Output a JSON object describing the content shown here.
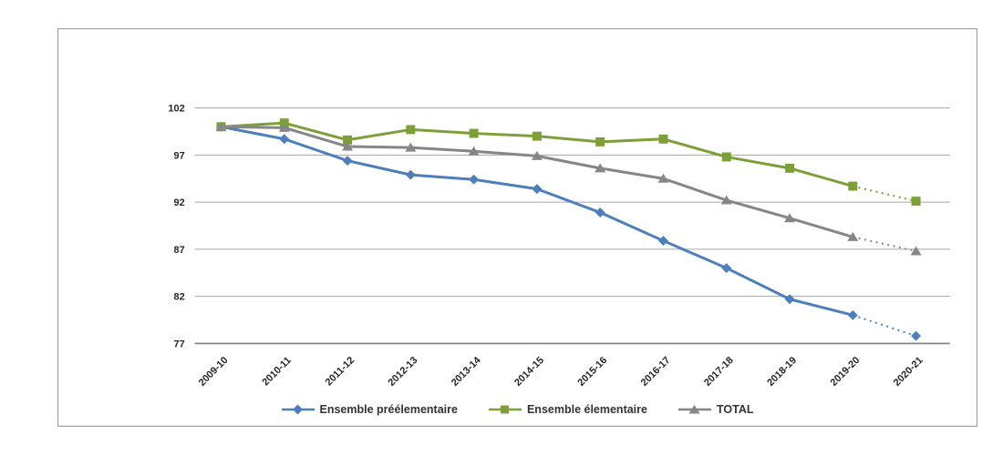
{
  "page": {
    "background": "#ffffff"
  },
  "chart_data": {
    "type": "line",
    "title": "",
    "xlabel": "",
    "ylabel": "",
    "categories": [
      "2009-10",
      "2010-11",
      "2011-12",
      "2012-13",
      "2013-14",
      "2014-15",
      "2015-16",
      "2016-17",
      "2017-18",
      "2018-19",
      "2019-20",
      "2020-21"
    ],
    "series": [
      {
        "name": "Ensemble préélementaire",
        "color": "#4e7fba",
        "marker": "diamond",
        "values": [
          100,
          98.7,
          96.4,
          94.9,
          94.4,
          93.4,
          90.9,
          87.9,
          85.0,
          81.7,
          80.0,
          77.8
        ],
        "dotted_from_index": 10
      },
      {
        "name": "Ensemble élementaire",
        "color": "#7c9f38",
        "marker": "square",
        "values": [
          100,
          100.4,
          98.6,
          99.7,
          99.3,
          99.0,
          98.4,
          98.7,
          96.8,
          95.6,
          93.7,
          92.1
        ],
        "dotted_from_index": 10
      },
      {
        "name": "TOTAL",
        "color": "#868686",
        "marker": "triangle",
        "values": [
          100,
          99.9,
          97.9,
          97.8,
          97.4,
          96.9,
          95.6,
          94.5,
          92.2,
          90.3,
          88.3,
          86.8
        ],
        "dotted_from_index": 10
      }
    ],
    "ylim": [
      77,
      102
    ],
    "yticks": [
      102,
      97,
      92,
      87,
      82,
      77
    ],
    "grid": true,
    "legend_position": "bottom",
    "gridline_color": "#a6a6a6",
    "axis_color": "#7f7f7f",
    "tick_label_color": "#262626"
  }
}
